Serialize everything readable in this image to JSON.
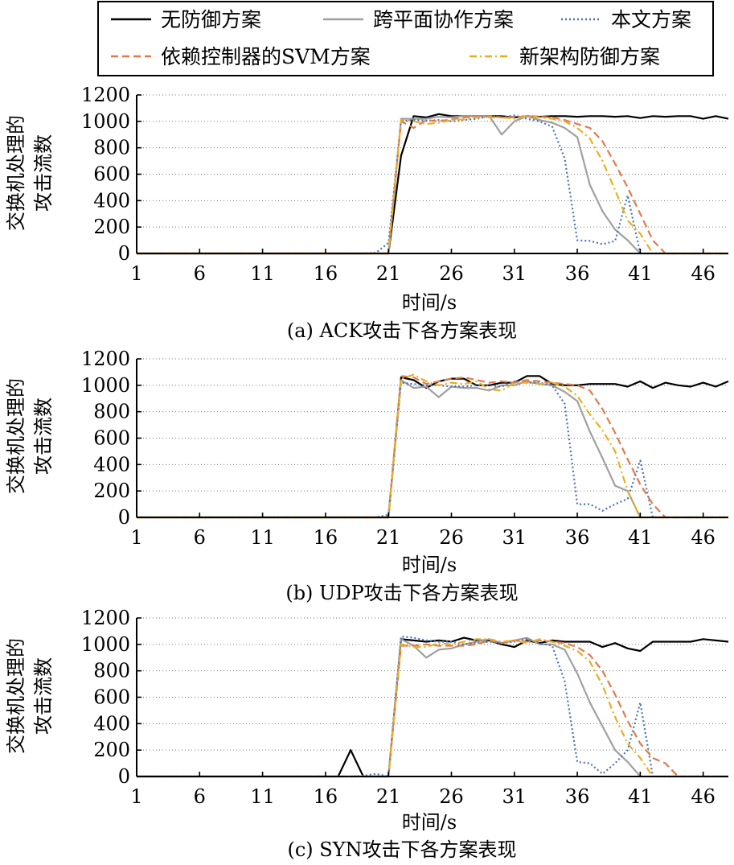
{
  "legend": {
    "items": [
      {
        "label": "无防御方案",
        "color": "#000000",
        "dash": "solid"
      },
      {
        "label": "跨平面协作方案",
        "color": "#a0a0a0",
        "dash": "solid"
      },
      {
        "label": "本文方案",
        "color": "#4a73b8",
        "dash": "dot"
      },
      {
        "label": "依赖控制器的SVM方案",
        "color": "#e07a4e",
        "dash": "dash"
      },
      {
        "label": "新架构防御方案",
        "color": "#e8b020",
        "dash": "dashdot"
      }
    ]
  },
  "chart_data": [
    {
      "type": "line",
      "title": "(a) ACK攻击下各方案表现",
      "xlabel": "时间/s",
      "ylabel": [
        "交换机处理的",
        "攻击流数"
      ],
      "xlim": [
        1,
        48
      ],
      "ylim": [
        0,
        1200
      ],
      "xticks": [
        1,
        6,
        11,
        16,
        21,
        26,
        31,
        36,
        41,
        46
      ],
      "yticks": [
        0,
        200,
        400,
        600,
        800,
        1000,
        1200
      ],
      "grid": "horizontal-dotted",
      "x": [
        1,
        2,
        3,
        4,
        5,
        6,
        7,
        8,
        9,
        10,
        11,
        12,
        13,
        14,
        15,
        16,
        17,
        18,
        19,
        20,
        21,
        22,
        23,
        24,
        25,
        26,
        27,
        28,
        29,
        30,
        31,
        32,
        33,
        34,
        35,
        36,
        37,
        38,
        39,
        40,
        41,
        42,
        43,
        44,
        45,
        46,
        47,
        48
      ],
      "series": [
        {
          "name": "无防御方案",
          "values": [
            0,
            0,
            0,
            0,
            0,
            0,
            0,
            0,
            0,
            0,
            0,
            0,
            0,
            0,
            0,
            0,
            0,
            0,
            0,
            0,
            0,
            740,
            1040,
            1030,
            1055,
            1040,
            1040,
            1040,
            1040,
            1040,
            1030,
            1040,
            1035,
            1040,
            1040,
            1035,
            1040,
            1040,
            1035,
            1040,
            1025,
            1040,
            1035,
            1040,
            1040,
            1020,
            1040,
            1020
          ]
        },
        {
          "name": "跨平面协作方案",
          "values": [
            0,
            0,
            0,
            0,
            0,
            0,
            0,
            0,
            0,
            0,
            0,
            0,
            0,
            0,
            0,
            0,
            0,
            0,
            0,
            0,
            0,
            1020,
            1020,
            1020,
            1035,
            1030,
            1040,
            1040,
            1040,
            900,
            1000,
            1040,
            1010,
            990,
            950,
            880,
            520,
            320,
            180,
            100,
            0,
            0,
            0,
            0,
            0,
            0,
            0,
            0
          ]
        },
        {
          "name": "本文方案",
          "values": [
            0,
            0,
            0,
            0,
            0,
            0,
            0,
            0,
            0,
            0,
            0,
            0,
            0,
            0,
            0,
            0,
            0,
            0,
            0,
            5,
            80,
            1000,
            1010,
            1005,
            1010,
            1000,
            1010,
            1020,
            1040,
            1030,
            1045,
            1020,
            1000,
            960,
            720,
            100,
            95,
            70,
            95,
            440,
            0,
            0,
            0,
            0,
            0,
            0,
            0,
            0
          ]
        },
        {
          "name": "依赖控制器的SVM方案",
          "values": [
            0,
            0,
            0,
            0,
            0,
            0,
            0,
            0,
            0,
            0,
            0,
            0,
            0,
            0,
            0,
            0,
            0,
            0,
            0,
            0,
            0,
            1000,
            950,
            1010,
            1000,
            1015,
            1030,
            1040,
            1040,
            1030,
            1030,
            1040,
            1035,
            1030,
            1010,
            980,
            950,
            850,
            680,
            500,
            300,
            100,
            0,
            0,
            0,
            0,
            0,
            0
          ]
        },
        {
          "name": "新架构防御方案",
          "values": [
            0,
            0,
            0,
            0,
            0,
            0,
            0,
            0,
            0,
            0,
            0,
            0,
            0,
            0,
            0,
            0,
            0,
            0,
            0,
            0,
            0,
            1010,
            1000,
            980,
            990,
            1010,
            1015,
            1030,
            1030,
            1030,
            1020,
            1040,
            1030,
            1020,
            1000,
            950,
            870,
            700,
            480,
            250,
            150,
            0,
            0,
            0,
            0,
            0,
            0,
            0
          ]
        }
      ]
    },
    {
      "type": "line",
      "title": "(b) UDP攻击下各方案表现",
      "xlabel": "时间/s",
      "ylabel": [
        "交换机处理的",
        "攻击流数"
      ],
      "xlim": [
        1,
        48
      ],
      "ylim": [
        0,
        1200
      ],
      "xticks": [
        1,
        6,
        11,
        16,
        21,
        26,
        31,
        36,
        41,
        46
      ],
      "yticks": [
        0,
        200,
        400,
        600,
        800,
        1000,
        1200
      ],
      "grid": "horizontal-dotted",
      "x": [
        1,
        2,
        3,
        4,
        5,
        6,
        7,
        8,
        9,
        10,
        11,
        12,
        13,
        14,
        15,
        16,
        17,
        18,
        19,
        20,
        21,
        22,
        23,
        24,
        25,
        26,
        27,
        28,
        29,
        30,
        31,
        32,
        33,
        34,
        35,
        36,
        37,
        38,
        39,
        40,
        41,
        42,
        43,
        44,
        45,
        46,
        47,
        48
      ],
      "series": [
        {
          "name": "无防御方案",
          "values": [
            0,
            0,
            0,
            0,
            0,
            0,
            0,
            0,
            0,
            0,
            0,
            0,
            0,
            0,
            0,
            0,
            0,
            0,
            0,
            0,
            0,
            1060,
            1040,
            980,
            1030,
            1050,
            1050,
            1000,
            1000,
            1020,
            1020,
            1070,
            1070,
            1010,
            1000,
            1000,
            1010,
            1010,
            1010,
            990,
            1030,
            980,
            1020,
            1000,
            990,
            1020,
            990,
            1030
          ]
        },
        {
          "name": "跨平面协作方案",
          "values": [
            0,
            0,
            0,
            0,
            0,
            0,
            0,
            0,
            0,
            0,
            0,
            0,
            0,
            0,
            0,
            0,
            0,
            0,
            0,
            0,
            0,
            1040,
            980,
            990,
            910,
            990,
            980,
            980,
            960,
            1000,
            1000,
            1030,
            1010,
            1000,
            950,
            880,
            650,
            450,
            240,
            200,
            0,
            0,
            0,
            0,
            0,
            0,
            0,
            0
          ]
        },
        {
          "name": "本文方案",
          "values": [
            0,
            0,
            0,
            0,
            0,
            0,
            0,
            0,
            0,
            0,
            0,
            0,
            0,
            0,
            0,
            0,
            0,
            0,
            0,
            0,
            20,
            1020,
            1010,
            1000,
            1000,
            990,
            990,
            1000,
            1000,
            990,
            1030,
            1020,
            1020,
            1000,
            860,
            100,
            100,
            50,
            100,
            140,
            430,
            0,
            0,
            0,
            0,
            0,
            0,
            0
          ]
        },
        {
          "name": "依赖控制器的SVM方案",
          "values": [
            0,
            0,
            0,
            0,
            0,
            0,
            0,
            0,
            0,
            0,
            0,
            0,
            0,
            0,
            0,
            0,
            0,
            0,
            0,
            0,
            0,
            1070,
            1060,
            1010,
            1030,
            1050,
            1060,
            1040,
            1020,
            1030,
            1020,
            1040,
            1030,
            1020,
            1010,
            1000,
            960,
            820,
            640,
            440,
            250,
            100,
            0,
            0,
            0,
            0,
            0,
            0
          ]
        },
        {
          "name": "新架构防御方案",
          "values": [
            0,
            0,
            0,
            0,
            0,
            0,
            0,
            0,
            0,
            0,
            0,
            0,
            0,
            0,
            0,
            0,
            0,
            0,
            0,
            0,
            0,
            1050,
            1080,
            1030,
            1000,
            1020,
            1010,
            1030,
            970,
            960,
            1020,
            1020,
            1010,
            1020,
            990,
            920,
            780,
            660,
            500,
            200,
            0,
            0,
            0,
            0,
            0,
            0,
            0,
            0
          ]
        }
      ]
    },
    {
      "type": "line",
      "title": "(c) SYN攻击下各方案表现",
      "xlabel": "时间/s",
      "ylabel": [
        "交换机处理的",
        "攻击流数"
      ],
      "xlim": [
        1,
        48
      ],
      "ylim": [
        0,
        1200
      ],
      "xticks": [
        1,
        6,
        11,
        16,
        21,
        26,
        31,
        36,
        41,
        46
      ],
      "yticks": [
        0,
        200,
        400,
        600,
        800,
        1000,
        1200
      ],
      "grid": "horizontal-dotted",
      "x": [
        1,
        2,
        3,
        4,
        5,
        6,
        7,
        8,
        9,
        10,
        11,
        12,
        13,
        14,
        15,
        16,
        17,
        18,
        19,
        20,
        21,
        22,
        23,
        24,
        25,
        26,
        27,
        28,
        29,
        30,
        31,
        32,
        33,
        34,
        35,
        36,
        37,
        38,
        39,
        40,
        41,
        42,
        43,
        44,
        45,
        46,
        47,
        48
      ],
      "series": [
        {
          "name": "无防御方案",
          "values": [
            0,
            0,
            0,
            0,
            0,
            0,
            0,
            0,
            0,
            0,
            0,
            0,
            0,
            0,
            0,
            0,
            0,
            200,
            0,
            0,
            0,
            1040,
            1030,
            1020,
            1030,
            1020,
            1050,
            1030,
            1030,
            1000,
            980,
            1030,
            1010,
            1030,
            1020,
            1020,
            1020,
            980,
            1010,
            970,
            950,
            1020,
            1020,
            1020,
            1020,
            1040,
            1030,
            1020
          ]
        },
        {
          "name": "跨平面协作方案",
          "values": [
            0,
            0,
            0,
            0,
            0,
            0,
            0,
            0,
            0,
            0,
            0,
            0,
            0,
            0,
            0,
            0,
            0,
            0,
            0,
            0,
            0,
            1040,
            990,
            900,
            960,
            970,
            1000,
            1020,
            1040,
            1010,
            1030,
            1050,
            1000,
            1000,
            960,
            780,
            560,
            380,
            200,
            110,
            0,
            0,
            0,
            0,
            0,
            0,
            0,
            0
          ]
        },
        {
          "name": "本文方案",
          "values": [
            0,
            0,
            0,
            0,
            0,
            0,
            0,
            0,
            0,
            0,
            0,
            0,
            0,
            0,
            0,
            0,
            0,
            0,
            5,
            20,
            0,
            1060,
            1050,
            1030,
            1020,
            1020,
            1000,
            1010,
            1020,
            1010,
            1020,
            1040,
            1010,
            990,
            720,
            110,
            100,
            20,
            100,
            200,
            560,
            0,
            0,
            0,
            0,
            0,
            0,
            0
          ]
        },
        {
          "name": "依赖控制器的SVM方案",
          "values": [
            0,
            0,
            0,
            0,
            0,
            0,
            0,
            0,
            0,
            0,
            0,
            0,
            0,
            0,
            0,
            0,
            0,
            0,
            0,
            0,
            0,
            990,
            990,
            1000,
            990,
            990,
            990,
            1000,
            1030,
            1010,
            1030,
            1020,
            1030,
            1020,
            1010,
            980,
            920,
            800,
            620,
            420,
            250,
            140,
            100,
            0,
            0,
            0,
            0,
            0
          ]
        },
        {
          "name": "新架构防御方案",
          "values": [
            0,
            0,
            0,
            0,
            0,
            0,
            0,
            0,
            0,
            0,
            0,
            0,
            0,
            0,
            0,
            0,
            0,
            0,
            0,
            0,
            0,
            1000,
            980,
            980,
            1010,
            1000,
            1020,
            1040,
            1040,
            1020,
            1030,
            1010,
            1040,
            1020,
            990,
            950,
            870,
            690,
            450,
            250,
            140,
            0,
            0,
            0,
            0,
            0,
            0,
            0
          ]
        }
      ]
    }
  ]
}
